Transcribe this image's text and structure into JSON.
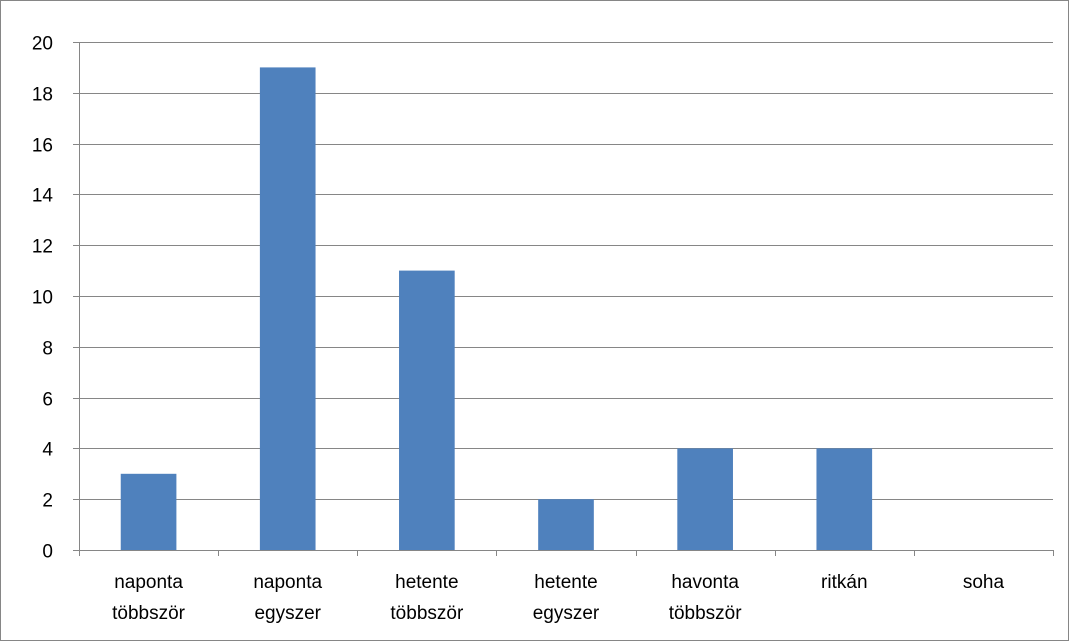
{
  "chart_data": {
    "type": "bar",
    "categories": [
      [
        "naponta",
        "többször"
      ],
      [
        "naponta",
        "egyszer"
      ],
      [
        "hetente",
        "többször"
      ],
      [
        "hetente",
        "egyszer"
      ],
      [
        "havonta",
        "többször"
      ],
      [
        "ritkán"
      ],
      [
        "soha"
      ]
    ],
    "values": [
      3,
      19,
      11,
      2,
      4,
      4,
      0
    ],
    "ylim": [
      0,
      20
    ],
    "yticks": [
      "0",
      "2",
      "4",
      "6",
      "8",
      "10",
      "12",
      "14",
      "16",
      "18",
      "20"
    ],
    "grid": true,
    "legend": "none",
    "colors": {
      "bar": "#4f81bd",
      "gridline": "#868686",
      "axis": "#868686",
      "frame": "#868686"
    }
  }
}
